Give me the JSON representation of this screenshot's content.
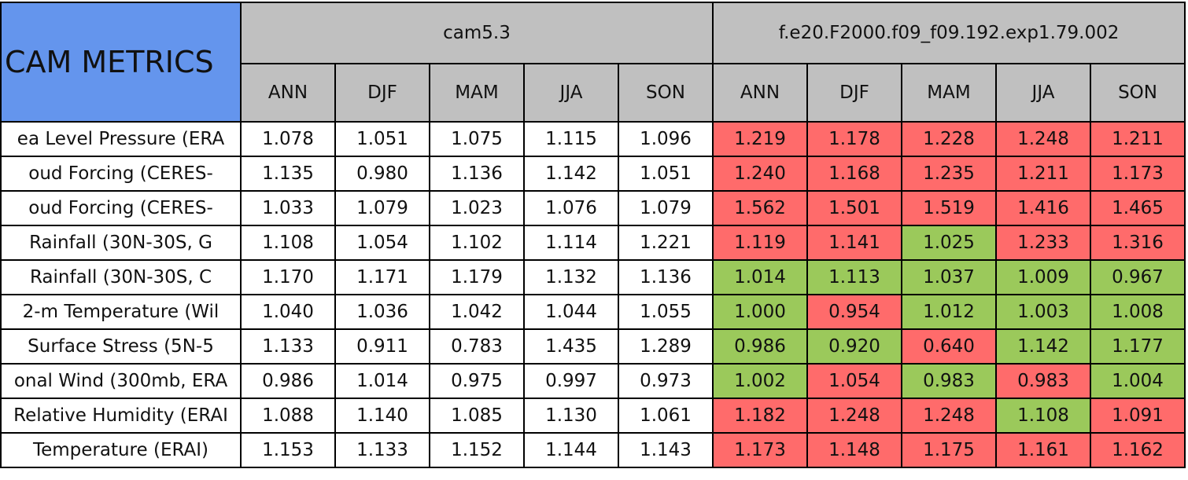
{
  "table": {
    "title": "CAM METRICS",
    "groups": [
      {
        "name": "cam5.3",
        "seasons": [
          "ANN",
          "DJF",
          "MAM",
          "JJA",
          "SON"
        ]
      },
      {
        "name": "f.e20.F2000.f09_f09.192.exp1.79.002",
        "seasons": [
          "ANN",
          "DJF",
          "MAM",
          "JJA",
          "SON"
        ]
      }
    ],
    "rows": [
      {
        "label": "ea Level Pressure (ERA",
        "values": [
          "1.078",
          "1.051",
          "1.075",
          "1.115",
          "1.096",
          "1.219",
          "1.178",
          "1.228",
          "1.248",
          "1.211"
        ],
        "colors": [
          "#ffffff",
          "#ffffff",
          "#ffffff",
          "#ffffff",
          "#ffffff",
          "#ff6b6b",
          "#ff6b6b",
          "#ff6b6b",
          "#ff6b6b",
          "#ff6b6b"
        ]
      },
      {
        "label": "oud Forcing (CERES-",
        "values": [
          "1.135",
          "0.980",
          "1.136",
          "1.142",
          "1.051",
          "1.240",
          "1.168",
          "1.235",
          "1.211",
          "1.173"
        ],
        "colors": [
          "#ffffff",
          "#ffffff",
          "#ffffff",
          "#ffffff",
          "#ffffff",
          "#ff6b6b",
          "#ff6b6b",
          "#ff6b6b",
          "#ff6b6b",
          "#ff6b6b"
        ]
      },
      {
        "label": "oud Forcing (CERES-",
        "values": [
          "1.033",
          "1.079",
          "1.023",
          "1.076",
          "1.079",
          "1.562",
          "1.501",
          "1.519",
          "1.416",
          "1.465"
        ],
        "colors": [
          "#ffffff",
          "#ffffff",
          "#ffffff",
          "#ffffff",
          "#ffffff",
          "#ff6b6b",
          "#ff6b6b",
          "#ff6b6b",
          "#ff6b6b",
          "#ff6b6b"
        ]
      },
      {
        "label": "Rainfall (30N-30S, G",
        "values": [
          "1.108",
          "1.054",
          "1.102",
          "1.114",
          "1.221",
          "1.119",
          "1.141",
          "1.025",
          "1.233",
          "1.316"
        ],
        "colors": [
          "#ffffff",
          "#ffffff",
          "#ffffff",
          "#ffffff",
          "#ffffff",
          "#ff6b6b",
          "#ff6b6b",
          "#9bc95b",
          "#ff6b6b",
          "#ff6b6b"
        ]
      },
      {
        "label": "Rainfall (30N-30S, C",
        "values": [
          "1.170",
          "1.171",
          "1.179",
          "1.132",
          "1.136",
          "1.014",
          "1.113",
          "1.037",
          "1.009",
          "0.967"
        ],
        "colors": [
          "#ffffff",
          "#ffffff",
          "#ffffff",
          "#ffffff",
          "#ffffff",
          "#9bc95b",
          "#9bc95b",
          "#9bc95b",
          "#9bc95b",
          "#9bc95b"
        ]
      },
      {
        "label": "2-m Temperature (Wil",
        "values": [
          "1.040",
          "1.036",
          "1.042",
          "1.044",
          "1.055",
          "1.000",
          "0.954",
          "1.012",
          "1.003",
          "1.008"
        ],
        "colors": [
          "#ffffff",
          "#ffffff",
          "#ffffff",
          "#ffffff",
          "#ffffff",
          "#9bc95b",
          "#ff6b6b",
          "#9bc95b",
          "#9bc95b",
          "#9bc95b"
        ]
      },
      {
        "label": "Surface Stress (5N-5",
        "values": [
          "1.133",
          "0.911",
          "0.783",
          "1.435",
          "1.289",
          "0.986",
          "0.920",
          "0.640",
          "1.142",
          "1.177"
        ],
        "colors": [
          "#ffffff",
          "#ffffff",
          "#ffffff",
          "#ffffff",
          "#ffffff",
          "#9bc95b",
          "#9bc95b",
          "#ff6b6b",
          "#9bc95b",
          "#9bc95b"
        ]
      },
      {
        "label": "onal Wind (300mb, ERA",
        "values": [
          "0.986",
          "1.014",
          "0.975",
          "0.997",
          "0.973",
          "1.002",
          "1.054",
          "0.983",
          "0.983",
          "1.004"
        ],
        "colors": [
          "#ffffff",
          "#ffffff",
          "#ffffff",
          "#ffffff",
          "#ffffff",
          "#9bc95b",
          "#ff6b6b",
          "#9bc95b",
          "#ff6b6b",
          "#9bc95b"
        ]
      },
      {
        "label": "Relative Humidity (ERAI",
        "values": [
          "1.088",
          "1.140",
          "1.085",
          "1.130",
          "1.061",
          "1.182",
          "1.248",
          "1.248",
          "1.108",
          "1.091"
        ],
        "colors": [
          "#ffffff",
          "#ffffff",
          "#ffffff",
          "#ffffff",
          "#ffffff",
          "#ff6b6b",
          "#ff6b6b",
          "#ff6b6b",
          "#9bc95b",
          "#ff6b6b"
        ]
      },
      {
        "label": "Temperature (ERAI)",
        "values": [
          "1.153",
          "1.133",
          "1.152",
          "1.144",
          "1.143",
          "1.173",
          "1.148",
          "1.175",
          "1.161",
          "1.162"
        ],
        "colors": [
          "#ffffff",
          "#ffffff",
          "#ffffff",
          "#ffffff",
          "#ffffff",
          "#ff6b6b",
          "#ff6b6b",
          "#ff6b6b",
          "#ff6b6b",
          "#ff6b6b"
        ]
      }
    ]
  }
}
